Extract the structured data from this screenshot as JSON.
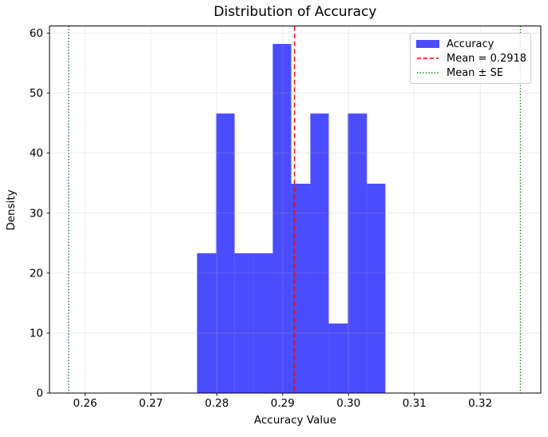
{
  "figure": {
    "title": "Distribution of Accuracy",
    "xlabel": "Accuracy Value",
    "ylabel": "Density"
  },
  "legend": {
    "items": [
      {
        "label": "Accuracy",
        "sample": "patch",
        "color": "#0000FF"
      },
      {
        "label": "Mean = 0.2918",
        "sample": "dashed-line",
        "color": "#FF0000"
      },
      {
        "label": "Mean ± SE",
        "sample": "dotted-line",
        "color": "#008000"
      }
    ]
  },
  "chart_data": {
    "type": "bar",
    "subtype": "histogram-density",
    "title": "Distribution of Accuracy",
    "xlabel": "Accuracy Value",
    "ylabel": "Density",
    "n_samples": 30,
    "bin_edges": [
      0.277,
      0.2799,
      0.2827,
      0.2856,
      0.2885,
      0.2913,
      0.2942,
      0.297,
      0.2999,
      0.3028,
      0.3056
    ],
    "densities": [
      23.3,
      46.6,
      23.3,
      23.3,
      58.2,
      34.9,
      46.6,
      11.6,
      46.6,
      34.9
    ],
    "counts": [
      2,
      4,
      2,
      2,
      5,
      3,
      4,
      1,
      4,
      3
    ],
    "mean": 0.2918,
    "mean_minus_se": 0.2575,
    "mean_plus_se": 0.3261,
    "xlim": [
      0.2546,
      0.3292
    ],
    "ylim": [
      0,
      61.2
    ],
    "xtick_values": [
      0.26,
      0.27,
      0.28,
      0.29,
      0.3,
      0.31,
      0.32
    ],
    "xtick_labels": [
      "0.26",
      "0.27",
      "0.28",
      "0.29",
      "0.30",
      "0.31",
      "0.32"
    ],
    "ytick_values": [
      0,
      10,
      20,
      30,
      40,
      50,
      60
    ],
    "ytick_labels": [
      "0",
      "10",
      "20",
      "30",
      "40",
      "50",
      "60"
    ],
    "grid": true,
    "legend_position": "upper right",
    "colors": {
      "bar": "#0000FF",
      "bar_opacity": 0.7,
      "mean_line": "#FF0000",
      "se_line": "#008000",
      "grid": "#B0B0B0",
      "grid_opacity": 0.3,
      "spine": "#000000",
      "text": "#000000"
    }
  }
}
